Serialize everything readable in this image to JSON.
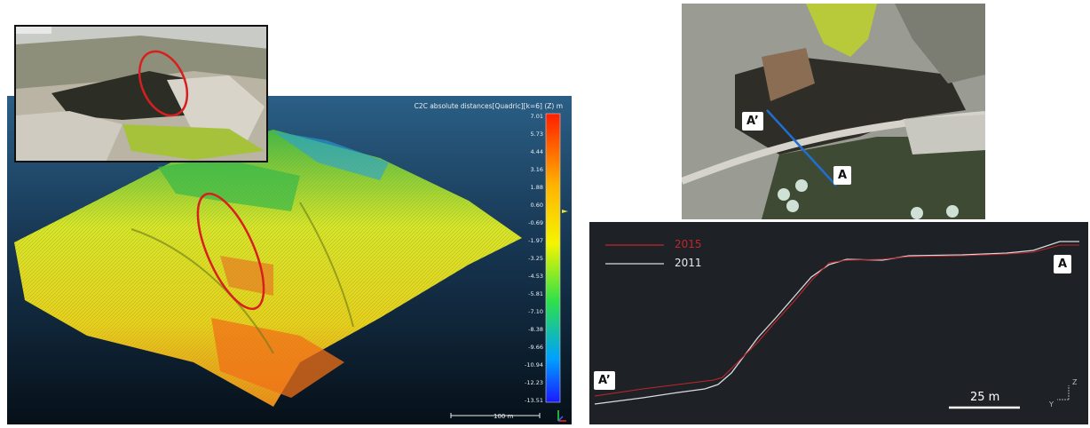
{
  "colorbar": {
    "title": "C2C absolute distances[Quadric][k=6] (Z) m",
    "ticks": [
      "7.01",
      "5.73",
      "4.44",
      "3.16",
      "1.88",
      "0.60",
      "-0.69",
      "-1.97",
      "-3.25",
      "-4.53",
      "-5.81",
      "-7.10",
      "-8.38",
      "-9.66",
      "-10.94",
      "-12.23",
      "-13.51"
    ]
  },
  "viewer": {
    "scale_label": "100 m"
  },
  "aerial": {
    "marker_a": "A",
    "marker_a_prime": "A’"
  },
  "profile": {
    "legend": [
      {
        "name": "2015",
        "color": "#c0262a"
      },
      {
        "name": "2011",
        "color": "#d8dce0"
      }
    ],
    "marker_a": "A",
    "marker_a_prime": "A’",
    "scalebar_label": "25 m",
    "axis_z": "Z",
    "axis_y": "Y"
  },
  "colors": {
    "highlight_ellipse": "#d81f1f",
    "section_line": "#1f6fd0"
  }
}
